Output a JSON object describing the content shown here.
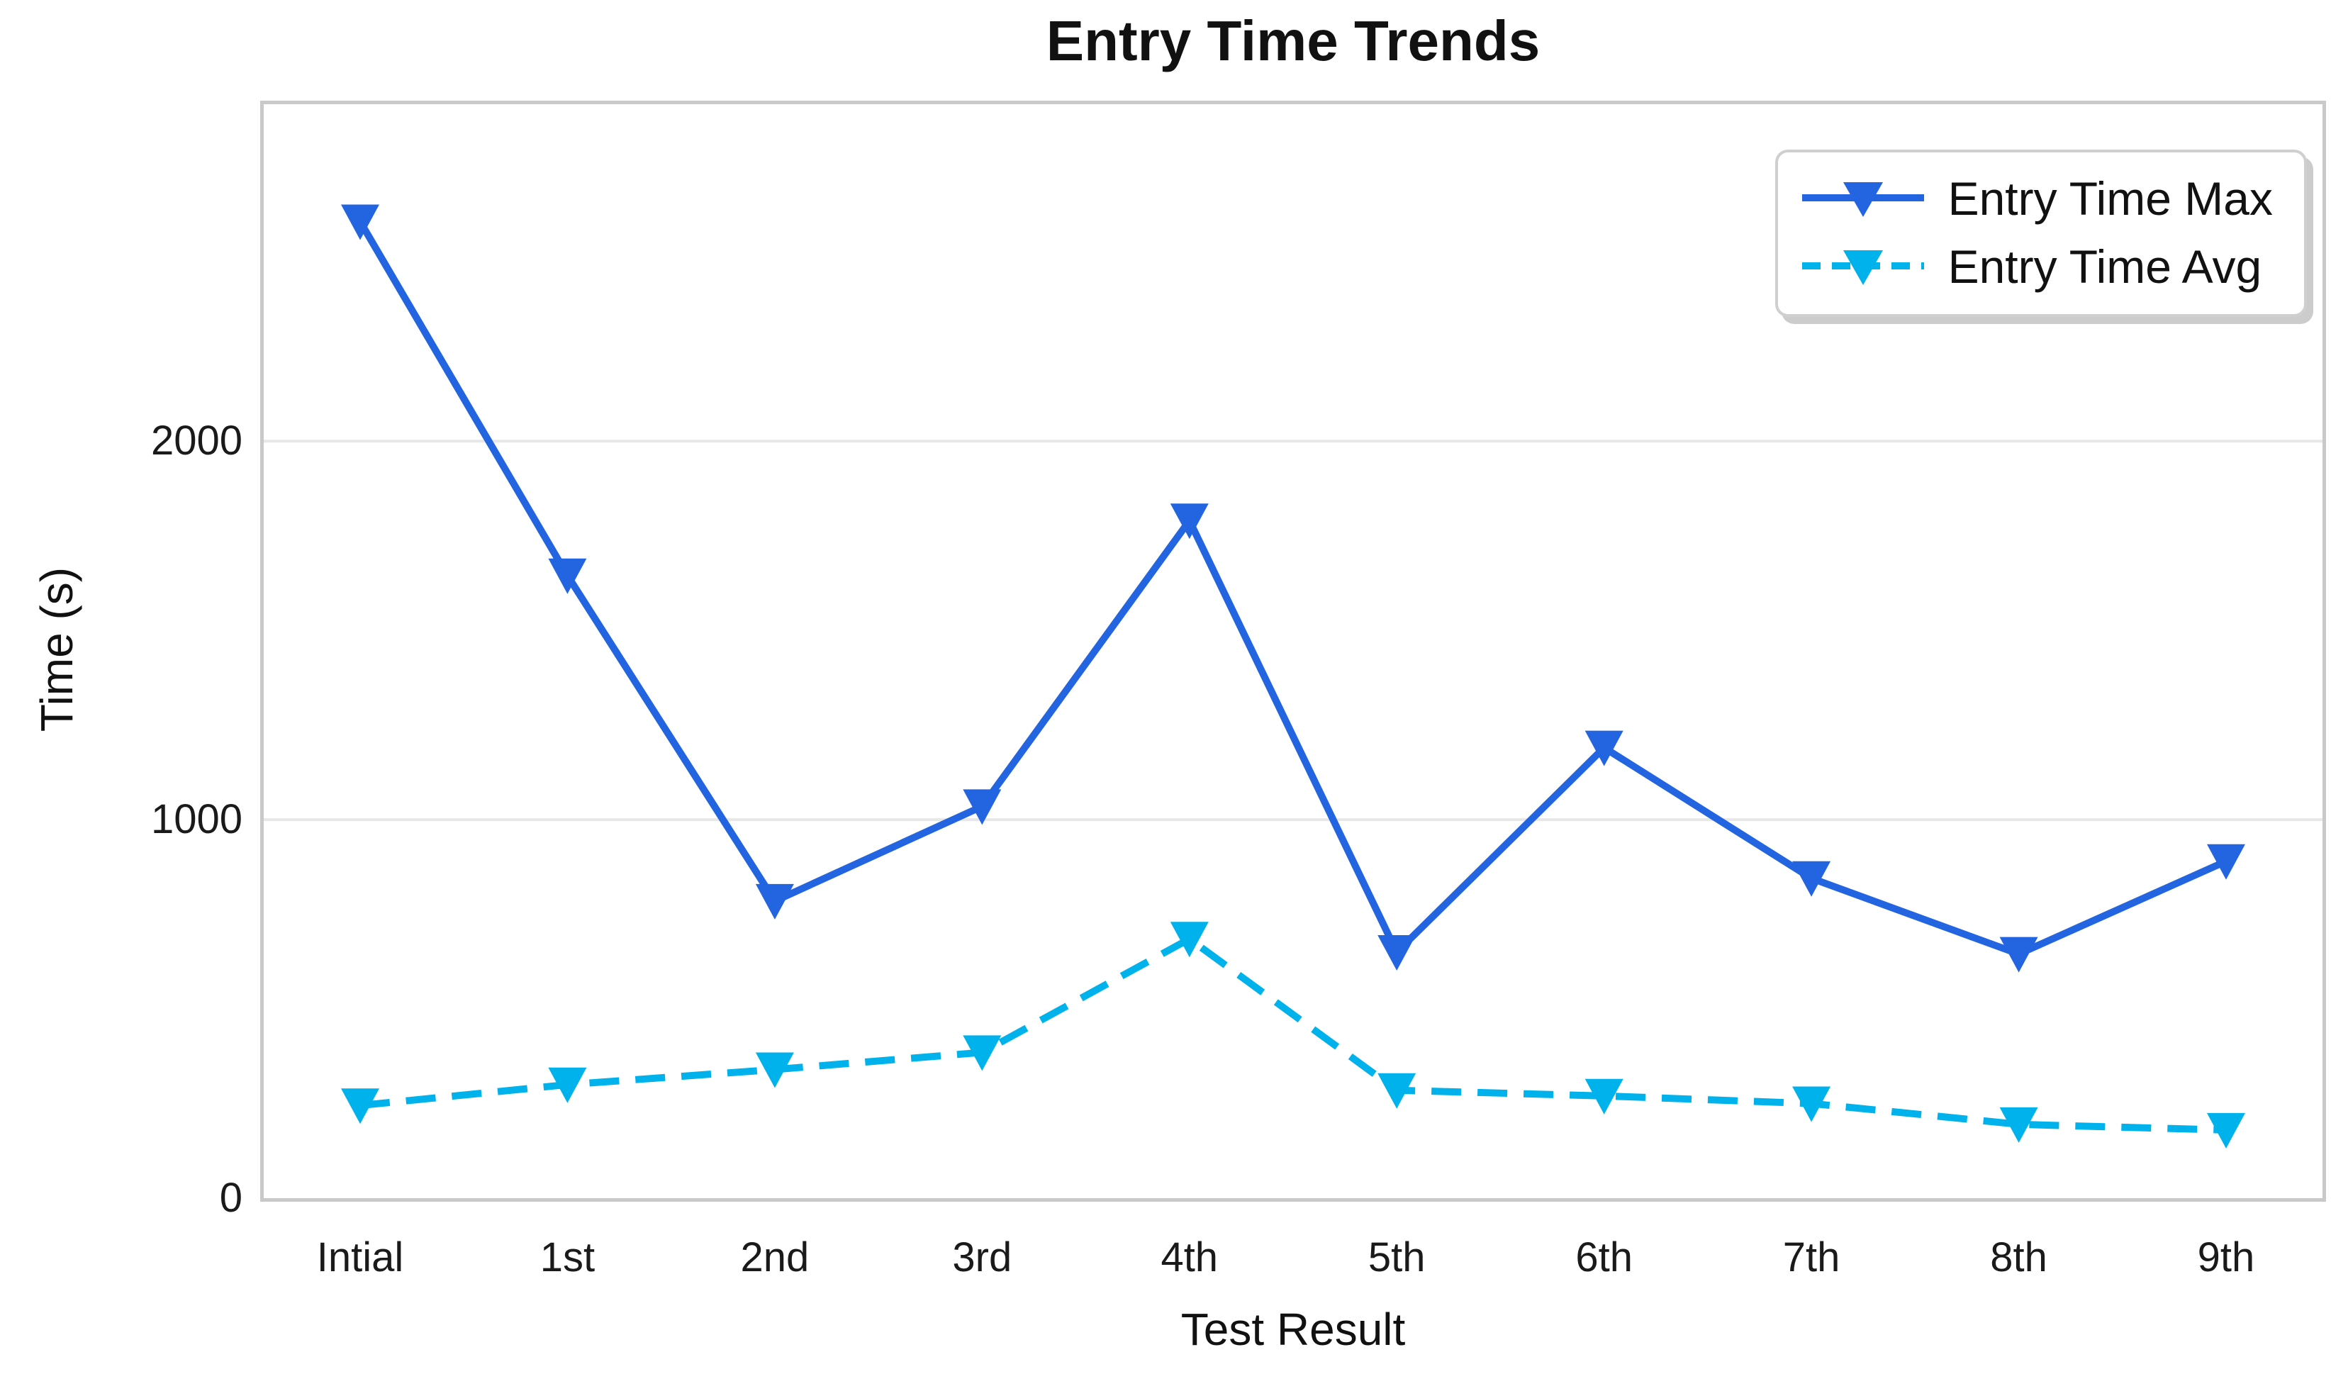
{
  "chart_data": {
    "type": "line",
    "title": "Entry Time Trends",
    "xlabel": "Test Result",
    "ylabel": "Time (s)",
    "categories": [
      "Intial",
      "1st",
      "2nd",
      "3rd",
      "4th",
      "5th",
      "6th",
      "7th",
      "8th",
      "9th"
    ],
    "series": [
      {
        "name": "Entry Time Max",
        "color": "#2364e1",
        "line_style": "solid",
        "marker": "triangle-down",
        "values": [
          2580,
          1645,
          785,
          1035,
          1790,
          650,
          1190,
          845,
          645,
          890
        ]
      },
      {
        "name": "Entry Time Avg",
        "color": "#00b2ec",
        "line_style": "dashed",
        "marker": "triangle-down",
        "values": [
          245,
          300,
          340,
          385,
          685,
          285,
          270,
          250,
          195,
          180
        ]
      }
    ],
    "ylim": [
      0,
      2890
    ],
    "yticks": [
      0,
      1000,
      2000
    ],
    "grid": "horizontal-only",
    "legend_position": "upper-right",
    "styles": {
      "background": "#ffffff",
      "grid_color": "#e7e7e7",
      "spine_color": "#c9c9c9",
      "tick_text_color": "#1a1a1a",
      "legend_border_color": "#cfcfcf",
      "legend_shadow_color": "#cccccc"
    }
  }
}
